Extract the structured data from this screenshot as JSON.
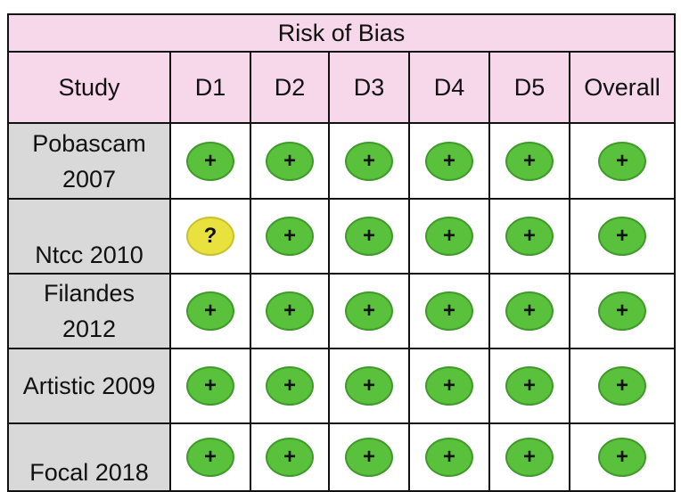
{
  "table": {
    "title": "Risk of Bias",
    "columns": [
      "Study",
      "D1",
      "D2",
      "D3",
      "D4",
      "D5",
      "Overall"
    ],
    "rows": [
      {
        "study": "Pobascam 2007",
        "judgments": [
          "+",
          "+",
          "+",
          "+",
          "+",
          "+"
        ]
      },
      {
        "study": "Ntcc 2010",
        "judgments": [
          "?",
          "+",
          "+",
          "+",
          "+",
          "+"
        ]
      },
      {
        "study": "Filandes 2012",
        "judgments": [
          "+",
          "+",
          "+",
          "+",
          "+",
          "+"
        ]
      },
      {
        "study": "Artistic 2009",
        "judgments": [
          "+",
          "+",
          "+",
          "+",
          "+",
          "+"
        ]
      },
      {
        "study": "Focal 2018",
        "judgments": [
          "+",
          "+",
          "+",
          "+",
          "+",
          "+"
        ]
      }
    ]
  }
}
